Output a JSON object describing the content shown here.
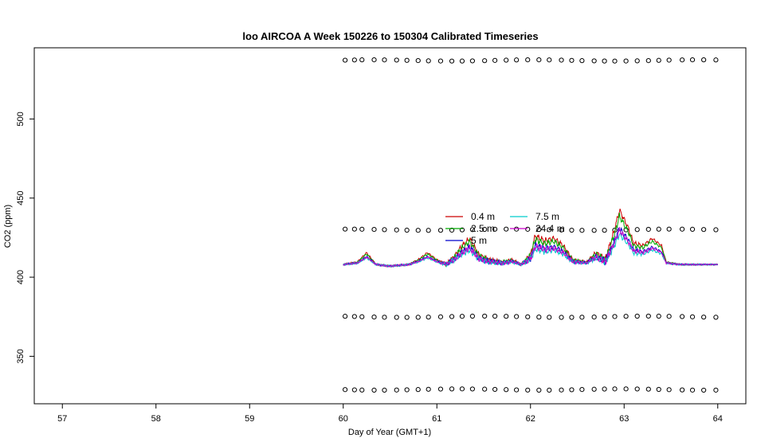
{
  "chart_data": {
    "type": "line",
    "title": "loo AIRCOA A  Week 150226 to 150304  Calibrated Timeseries",
    "xlabel": "Day of Year (GMT+1)",
    "ylabel": "CO2 (ppm)",
    "xlim": [
      56.7,
      64.3
    ],
    "ylim": [
      320,
      545
    ],
    "xticks": [
      "57",
      "58",
      "59",
      "60",
      "61",
      "62",
      "63",
      "64"
    ],
    "yticks": [
      "350",
      "400",
      "450",
      "500"
    ],
    "grid": false,
    "legend_position": "center-right",
    "series": [
      {
        "name": "0.4 m",
        "color": "#cc0000",
        "offset": 0.9
      },
      {
        "name": "2.5 m",
        "color": "#00aa00",
        "offset": 0.6
      },
      {
        "name": "5 m",
        "color": "#0000cc",
        "offset": 0.0
      },
      {
        "name": "7.5 m",
        "color": "#00cccc",
        "offset": -0.3
      },
      {
        "name": "24.4 m",
        "color": "#cc00cc",
        "offset": -0.1
      }
    ],
    "profile": {
      "x": [
        60.0,
        60.15,
        60.25,
        60.35,
        60.5,
        60.7,
        60.8,
        60.9,
        61.0,
        61.1,
        61.2,
        61.25,
        61.35,
        61.45,
        61.55,
        61.7,
        61.8,
        61.9,
        62.0,
        62.05,
        62.15,
        62.25,
        62.35,
        62.45,
        62.6,
        62.7,
        62.8,
        62.9,
        62.95,
        63.05,
        63.1,
        63.2,
        63.3,
        63.4,
        63.45,
        63.6,
        63.8,
        64.0
      ],
      "y": [
        408,
        409,
        413,
        408,
        407,
        408,
        410,
        413,
        410,
        408,
        412,
        415,
        419,
        412,
        410,
        409,
        410,
        408,
        412,
        420,
        418,
        419,
        416,
        410,
        409,
        413,
        410,
        423,
        431,
        423,
        417,
        416,
        419,
        416,
        409,
        408,
        408,
        408
      ],
      "amplitude": {
        "x": [
          60.0,
          61.0,
          61.2,
          61.4,
          61.9,
          62.0,
          62.3,
          62.6,
          62.8,
          63.1,
          63.4,
          64.0
        ],
        "y": [
          0.3,
          0.3,
          0.9,
          1.0,
          0.4,
          1.2,
          0.9,
          0.4,
          1.3,
          0.8,
          0.3,
          0.2
        ]
      }
    },
    "cal_points": {
      "levels": [
        537,
        430,
        375,
        329
      ],
      "x": [
        60.02,
        60.12,
        60.2,
        60.33,
        60.44,
        60.57,
        60.68,
        60.8,
        60.91,
        61.04,
        61.16,
        61.27,
        61.38,
        61.51,
        61.62,
        61.74,
        61.85,
        61.97,
        62.09,
        62.2,
        62.33,
        62.44,
        62.55,
        62.68,
        62.79,
        62.9,
        63.02,
        63.14,
        63.26,
        63.37,
        63.48,
        63.62,
        63.73,
        63.85,
        63.98
      ]
    }
  }
}
